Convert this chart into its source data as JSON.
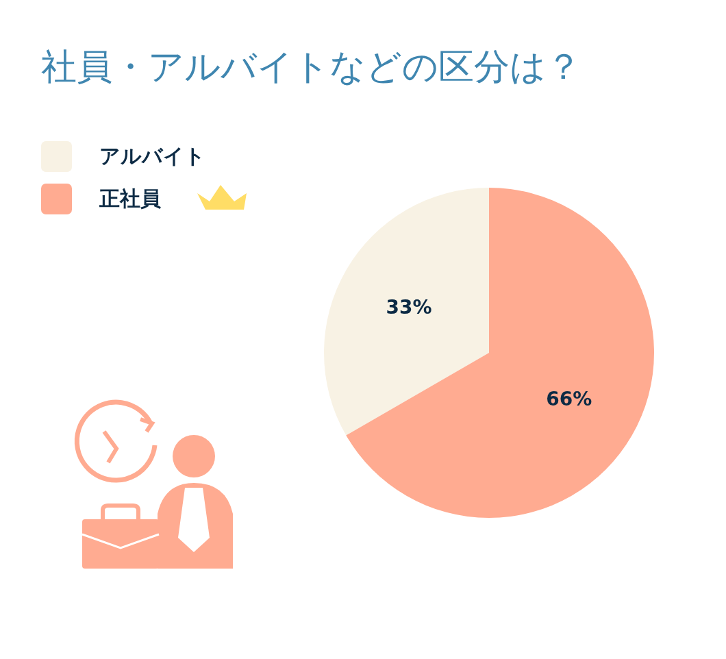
{
  "chart_data": {
    "type": "pie",
    "title": "社員・アルバイトなどの区分は？",
    "categories": [
      "アルバイト",
      "正社員"
    ],
    "values": [
      33,
      66
    ],
    "colors": [
      "#f8f2e4",
      "#ffab91"
    ],
    "value_labels": [
      "33%",
      "66%"
    ],
    "legend": "top left"
  }
}
